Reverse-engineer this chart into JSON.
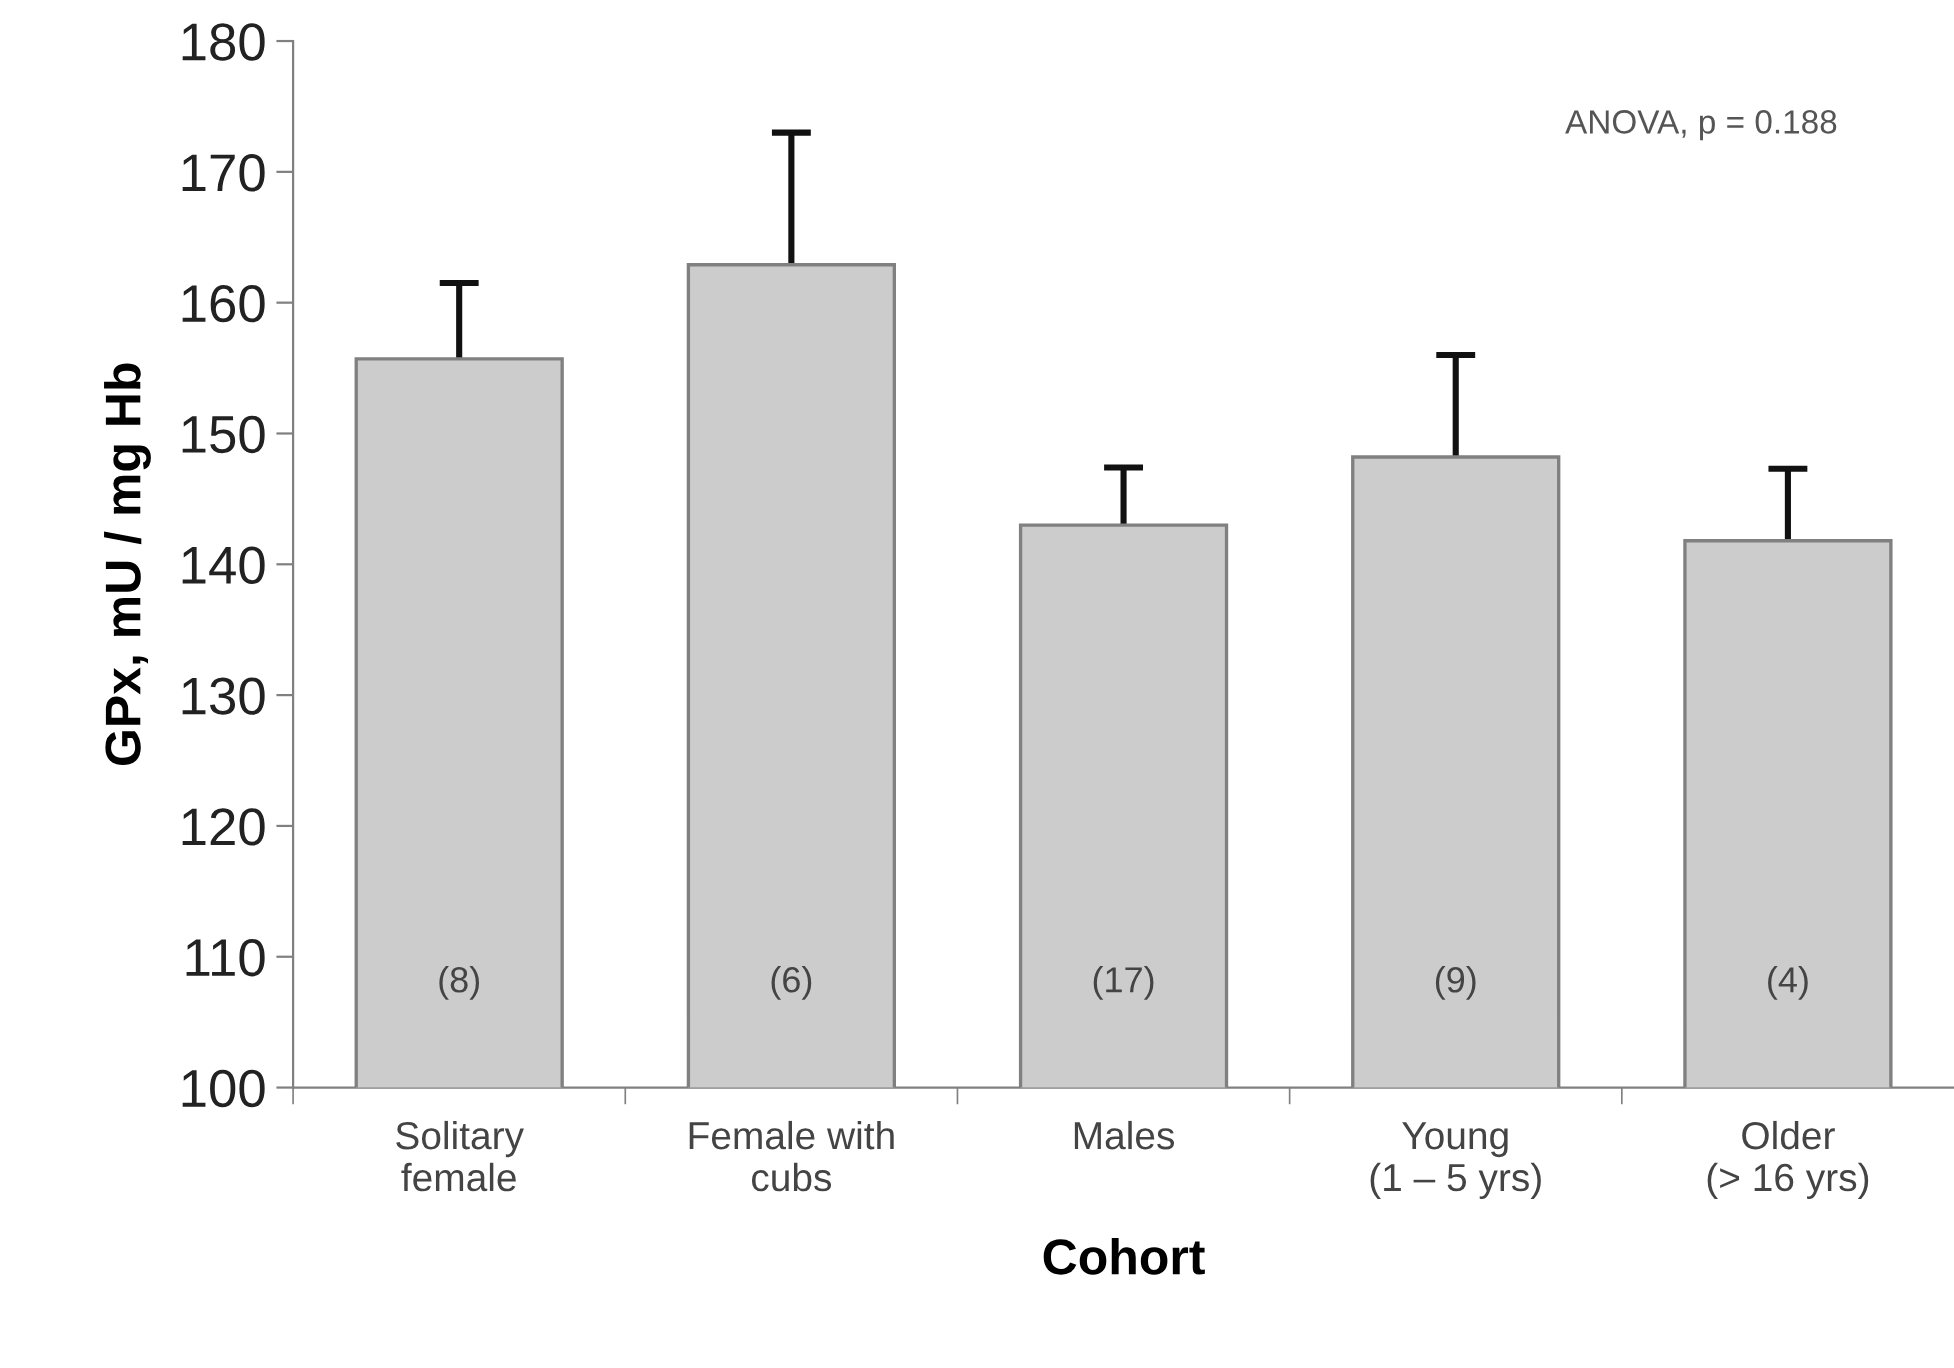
{
  "chart_data": {
    "type": "bar",
    "xlabel": "Cohort",
    "ylabel": "GPx, mU / mg Hb",
    "categories": [
      "Solitary\nfemale",
      "Female with\ncubs",
      "Males",
      "Young\n(1 – 5 yrs)",
      "Older\n(> 16 yrs)"
    ],
    "values": [
      155.7,
      162.9,
      143.0,
      148.2,
      141.8
    ],
    "errors": [
      5.8,
      10.1,
      4.4,
      7.8,
      5.5
    ],
    "color": "#cccccc",
    "ylim": [
      100,
      180
    ],
    "yticks": [
      100,
      110,
      120,
      130,
      140,
      150,
      160,
      170,
      180
    ],
    "grid": false,
    "legend": false,
    "annotations": [
      {
        "text": "ANOVA, p = 0.188"
      },
      "(8)",
      "(6)",
      "(17)",
      "(9)",
      "(4)"
    ]
  }
}
